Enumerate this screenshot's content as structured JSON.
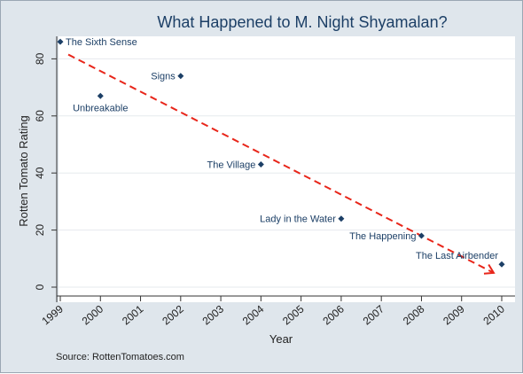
{
  "chart_data": {
    "type": "scatter",
    "title": "What Happened to M. Night Shyamalan?",
    "xlabel": "Year",
    "ylabel": "Rotten Tomato Rating",
    "xlim": [
      1999,
      2010
    ],
    "ylim": [
      0,
      90
    ],
    "x_ticks": [
      1999,
      2000,
      2001,
      2002,
      2003,
      2004,
      2005,
      2006,
      2007,
      2008,
      2009,
      2010
    ],
    "y_ticks": [
      0,
      20,
      40,
      60,
      80
    ],
    "grid": "horizontal",
    "points": [
      {
        "x": 1999,
        "y": 86,
        "label": "The Sixth Sense"
      },
      {
        "x": 2000,
        "y": 67,
        "label": "Unbreakable"
      },
      {
        "x": 2002,
        "y": 74,
        "label": "Signs"
      },
      {
        "x": 2004,
        "y": 43,
        "label": "The Village"
      },
      {
        "x": 2006,
        "y": 24,
        "label": "Lady in the Water"
      },
      {
        "x": 2008,
        "y": 18,
        "label": "The Happening"
      },
      {
        "x": 2010,
        "y": 8,
        "label": "The Last Airbender"
      }
    ],
    "trend_line": {
      "x1": 1999.2,
      "y1": 81.5,
      "x2": 2009.8,
      "y2": 5
    },
    "source": "Source: RottenTomatoes.com",
    "colors": {
      "marker": "#1c3f66",
      "trend": "#e8261a",
      "background": "#dfe6ec",
      "plot": "#ffffff"
    }
  }
}
